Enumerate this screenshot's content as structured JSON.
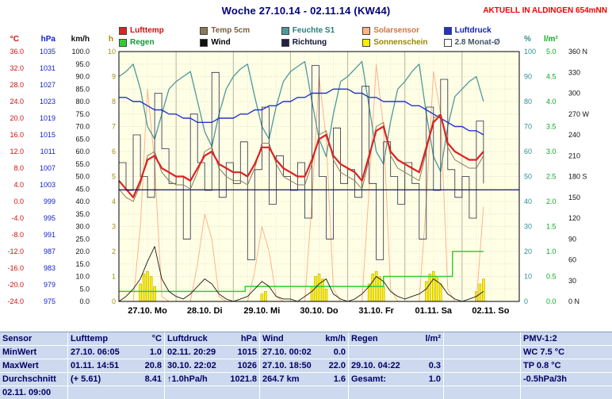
{
  "header": {
    "title": "Woche 27.10.14 - 02.11.14 (KW44)",
    "banner": "AKTUELL IN ALDINGEN 654mNN"
  },
  "colors": {
    "plot_bg": "#ffffe6",
    "page_bg": "#ffffff",
    "table_bg": "#ccd9ee",
    "banner_red": "#ee0000",
    "title_navy": "#000080"
  },
  "legend": {
    "items": [
      {
        "label": "Lufttemp",
        "swatch": "#dd2222",
        "text": "#cc1111"
      },
      {
        "label": "Temp 5cm",
        "swatch": "#8a7a5a",
        "text": "#7a6040"
      },
      {
        "label": "Feuchte S1",
        "swatch": "#4d9999",
        "text": "#2a7a7a"
      },
      {
        "label": "Solarsensor",
        "swatch": "#ffb388",
        "text": "#cc7744"
      },
      {
        "label": "Luftdruck",
        "swatch": "#2233cc",
        "text": "#1122bb"
      },
      {
        "label": "Regen",
        "swatch": "#33cc33",
        "text": "#119933"
      },
      {
        "label": "Wind",
        "swatch": "#111111",
        "text": "#000000"
      },
      {
        "label": "Richtung",
        "swatch": "#222244",
        "text": "#111133"
      },
      {
        "label": "Sonnenschein",
        "swatch": "#ffee00",
        "text": "#998800"
      },
      {
        "label": "2.8 Monat-Ø",
        "swatch": "#ffffff",
        "text": "#445566"
      }
    ]
  },
  "chart_data": {
    "type": "line",
    "title": "Woche 27.10.14 - 02.11.14 (KW44)",
    "x_range": [
      0,
      168
    ],
    "x_unit": "hours from 27.10.2014 00:00",
    "day_labels": [
      "27.10. Mo",
      "28.10. Di",
      "29.10. Mi",
      "30.10. Do",
      "31.10. Fr",
      "01.11. Sa",
      "02.11. So"
    ],
    "axes": {
      "temp": {
        "unit": "°C",
        "color": "#cc1111",
        "min": -24,
        "max": 36,
        "tick_values": [
          36,
          32,
          28,
          24,
          20,
          16,
          12,
          8,
          4,
          0,
          -4,
          -8,
          -12,
          -16,
          -20,
          -24
        ],
        "tick_labels": [
          "36.0",
          "32.0",
          "28.0",
          "24.0",
          "20.0",
          "16.0",
          "12.0",
          "8.0",
          "4.0",
          "0.0",
          "-4.0",
          "-8.0",
          "-12.0",
          "-16.0",
          "-20.0",
          "-24.0"
        ]
      },
      "hpa": {
        "unit": "hPa",
        "color": "#1122cc",
        "min": 975,
        "max": 1035,
        "tick_values": [
          1035,
          1031,
          1027,
          1023,
          1019,
          1015,
          1011,
          1007,
          1003,
          999,
          995,
          991,
          987,
          983,
          979,
          975
        ],
        "tick_labels": [
          "1035",
          "1031",
          "1027",
          "1023",
          "1019",
          "1015",
          "1011",
          "1007",
          "1003",
          "999",
          "995",
          "991",
          "987",
          "983",
          "979",
          "975"
        ]
      },
      "kmh": {
        "unit": "km/h",
        "color": "#111111",
        "min": 0,
        "max": 100,
        "tick_values": [
          100,
          95,
          90,
          85,
          80,
          75,
          70,
          65,
          60,
          55,
          50,
          45,
          40,
          35,
          30,
          25,
          20,
          15,
          10,
          5,
          0
        ],
        "tick_labels": [
          "100.0",
          "95.0",
          "90.0",
          "85.0",
          "80.0",
          "75.0",
          "70.0",
          "65.0",
          "60.0",
          "55.0",
          "50.0",
          "45.0",
          "40.0",
          "35.0",
          "30.0",
          "25.0",
          "20.0",
          "15.0",
          "10.0",
          "5.0",
          "0.0"
        ]
      },
      "h": {
        "unit": "h",
        "color": "#a39000",
        "min": 0,
        "max": 10,
        "tick_values": [
          10,
          9,
          8,
          7,
          6,
          5,
          4,
          3,
          2,
          1,
          0
        ],
        "tick_labels": [
          "10",
          "9",
          "8",
          "7",
          "6",
          "5",
          "4",
          "3",
          "2",
          "1",
          "0"
        ]
      },
      "pct": {
        "unit": "%",
        "color": "#2e8f8f",
        "min": 0,
        "max": 100,
        "tick_values": [
          100,
          90,
          80,
          70,
          60,
          50,
          40,
          30,
          20,
          10,
          0
        ],
        "tick_labels": [
          "100",
          "90",
          "80",
          "70",
          "60",
          "50",
          "40",
          "30",
          "20",
          "10",
          "0"
        ]
      },
      "lm2": {
        "unit": "l/m²",
        "color": "#11aa22",
        "min": 0,
        "max": 5,
        "tick_values": [
          5,
          4.5,
          4,
          3.5,
          3,
          2.5,
          2,
          1.5,
          1,
          0.5,
          0
        ],
        "tick_labels": [
          "5.0",
          "4.5",
          "4.0",
          "3.5",
          "3.0",
          "2.5",
          "2.0",
          "1.5",
          "1.0",
          "0.5",
          "0.0"
        ]
      },
      "dir": {
        "unit": "",
        "color": "#111111",
        "min": 0,
        "max": 360,
        "tick_values": [
          360,
          330,
          300,
          270,
          240,
          210,
          180,
          150,
          120,
          90,
          60,
          30,
          0
        ],
        "tick_labels": [
          "360 N",
          "330",
          "300",
          "270 W",
          "240",
          "210",
          "180 S",
          "150",
          "120",
          "90",
          "60",
          "30",
          "0 N"
        ]
      }
    },
    "x_hours": [
      0,
      3,
      6,
      9,
      12,
      15,
      18,
      21,
      24,
      27,
      30,
      33,
      36,
      39,
      42,
      45,
      48,
      51,
      54,
      57,
      60,
      63,
      66,
      69,
      72,
      75,
      78,
      81,
      84,
      87,
      90,
      93,
      96,
      99,
      102,
      105,
      108,
      111,
      114,
      117,
      120,
      123,
      126,
      129,
      132,
      135,
      138,
      141,
      144,
      147,
      150,
      153
    ],
    "series": [
      {
        "name": "Sonnenschein",
        "kind": "bars",
        "axis": "h",
        "color": "#ffee00",
        "stroke": "#aa9900",
        "points": [
          [
            9,
            0.7
          ],
          [
            10.5,
            1.1
          ],
          [
            12,
            1.2
          ],
          [
            13.5,
            1.0
          ],
          [
            15,
            0.6
          ],
          [
            60,
            0.3
          ],
          [
            61.5,
            0.4
          ],
          [
            81,
            0.6
          ],
          [
            82.5,
            1.0
          ],
          [
            84,
            1.1
          ],
          [
            85.5,
            0.9
          ],
          [
            87,
            0.5
          ],
          [
            105,
            0.7
          ],
          [
            106.5,
            1.1
          ],
          [
            108,
            1.2
          ],
          [
            109.5,
            1.0
          ],
          [
            111,
            0.6
          ],
          [
            129,
            0.8
          ],
          [
            130.5,
            1.1
          ],
          [
            132,
            1.2
          ],
          [
            133.5,
            1.0
          ],
          [
            135,
            0.7
          ],
          [
            150,
            0.4
          ],
          [
            151.5,
            0.7
          ],
          [
            153,
            0.9
          ]
        ]
      },
      {
        "name": "Solarsensor",
        "kind": "line",
        "axis": "pct",
        "color": "#ffb388",
        "width": 1,
        "y": [
          0,
          0,
          0,
          30,
          85,
          55,
          2,
          0,
          0,
          0,
          0,
          15,
          35,
          25,
          2,
          0,
          0,
          0,
          0,
          12,
          30,
          20,
          2,
          0,
          0,
          0,
          0,
          40,
          90,
          65,
          5,
          0,
          0,
          0,
          0,
          45,
          95,
          70,
          5,
          0,
          0,
          0,
          0,
          40,
          92,
          75,
          5,
          0,
          0,
          0,
          0,
          38
        ]
      },
      {
        "name": "Regen",
        "kind": "step",
        "axis": "lm2",
        "color": "#33cc33",
        "width": 1.5,
        "points": [
          [
            0,
            0.2
          ],
          [
            52,
            0.2
          ],
          [
            53,
            0.3
          ],
          [
            110,
            0.3
          ],
          [
            111,
            0.5
          ],
          [
            139,
            0.5
          ],
          [
            140,
            1.0
          ],
          [
            153,
            1.0
          ]
        ]
      },
      {
        "name": "Feuchte S1",
        "kind": "line",
        "axis": "pct",
        "color": "#4d9999",
        "width": 1.3,
        "y": [
          90,
          92,
          95,
          85,
          70,
          65,
          75,
          85,
          88,
          90,
          92,
          80,
          68,
          62,
          75,
          85,
          90,
          93,
          95,
          82,
          70,
          65,
          78,
          88,
          92,
          94,
          96,
          80,
          65,
          58,
          75,
          88,
          90,
          93,
          96,
          78,
          60,
          55,
          72,
          85,
          88,
          92,
          95,
          75,
          58,
          52,
          70,
          82,
          85,
          88,
          90,
          80
        ]
      },
      {
        "name": "Richtung",
        "kind": "step",
        "axis": "dir",
        "color": "#2a2a4a",
        "width": 0.8,
        "y": [
          200,
          160,
          240,
          180,
          150,
          300,
          220,
          170,
          180,
          90,
          270,
          200,
          160,
          330,
          150,
          200,
          170,
          230,
          60,
          190,
          280,
          140,
          210,
          180,
          160,
          200,
          120,
          340,
          180,
          90,
          250,
          170,
          190,
          150,
          310,
          170,
          60,
          230,
          180,
          140,
          200,
          170,
          90,
          280,
          160,
          320,
          190,
          150,
          180,
          120,
          260,
          170
        ]
      },
      {
        "name": "Wind",
        "kind": "line",
        "axis": "kmh",
        "color": "#1a1a1a",
        "width": 0.9,
        "y": [
          0,
          2,
          5,
          9,
          16,
          22,
          9,
          4,
          2,
          1,
          3,
          6,
          9,
          7,
          3,
          1,
          0,
          1,
          2,
          5,
          8,
          6,
          2,
          1,
          1,
          0,
          2,
          4,
          7,
          9,
          3,
          1,
          0,
          1,
          3,
          6,
          10,
          8,
          4,
          2,
          1,
          2,
          3,
          5,
          9,
          7,
          3,
          1,
          0,
          1,
          2,
          4
        ]
      },
      {
        "name": "Luftdruck",
        "kind": "line",
        "axis": "hpa",
        "color": "#2233cc",
        "width": 1.4,
        "y": [
          1024,
          1024,
          1023,
          1023,
          1022,
          1021,
          1021,
          1020,
          1020,
          1019,
          1019,
          1018,
          1018,
          1018,
          1019,
          1019,
          1019,
          1020,
          1020,
          1021,
          1021,
          1022,
          1022,
          1023,
          1023,
          1024,
          1024,
          1025,
          1025,
          1025,
          1026,
          1026,
          1026,
          1025,
          1025,
          1024,
          1024,
          1023,
          1023,
          1023,
          1023,
          1022,
          1022,
          1021,
          1020,
          1019,
          1018,
          1017,
          1017,
          1016,
          1016,
          1015
        ]
      },
      {
        "name": "Temp 5cm",
        "kind": "line",
        "axis": "temp",
        "color": "#8a7a5a",
        "width": 1,
        "y": [
          3,
          1,
          0,
          4,
          11,
          12,
          7,
          5,
          4,
          4,
          3,
          7,
          12,
          13,
          8,
          6,
          5,
          5,
          4,
          8,
          14,
          14,
          9,
          6,
          5,
          4,
          4,
          9,
          16,
          17,
          10,
          7,
          6,
          5,
          3,
          10,
          18,
          19,
          11,
          8,
          7,
          6,
          5,
          12,
          20,
          21,
          13,
          10,
          9,
          8,
          8,
          11
        ]
      },
      {
        "name": "Lufttemp",
        "kind": "line",
        "axis": "temp",
        "color": "#dd2222",
        "width": 2.2,
        "y": [
          5,
          3,
          1,
          5,
          10,
          11,
          8,
          7,
          6,
          6,
          5,
          8,
          11,
          12,
          9,
          8,
          7,
          7,
          6,
          9,
          13,
          13,
          10,
          8,
          7,
          6,
          6,
          10,
          15,
          16,
          11,
          9,
          8,
          7,
          5,
          11,
          17,
          18,
          12,
          10,
          9,
          8,
          7,
          13,
          19,
          20.8,
          14,
          12,
          11,
          10,
          10,
          12
        ]
      },
      {
        "name": "2.8 Monat-Ø",
        "kind": "hline",
        "axis": "temp",
        "color": "#000066",
        "width": 1.2,
        "value": 2.8
      }
    ]
  },
  "stats": {
    "header": {
      "sensor": "Sensor",
      "cols": [
        [
          "Lufttemp",
          "°C"
        ],
        [
          "Luftdruck",
          "hPa"
        ],
        [
          "Wind",
          "km/h"
        ],
        [
          "Regen",
          "l/m²"
        ]
      ],
      "pmv": "PMV-1:2"
    },
    "rows": [
      {
        "label": "MinWert",
        "cells": [
          [
            "27.10. 06:05",
            "1.0"
          ],
          [
            "02.11. 20:29",
            "1015"
          ],
          [
            "27.10. 00:02",
            "0.0"
          ],
          [
            "",
            ""
          ]
        ],
        "pmv": "WC 7.5 °C"
      },
      {
        "label": "MaxWert",
        "cells": [
          [
            "01.11. 14:51",
            "20.8"
          ],
          [
            "30.10. 22:02",
            "1026"
          ],
          [
            "27.10. 18:50",
            "22.0"
          ],
          [
            "29.10. 04:22",
            "0.3"
          ]
        ],
        "pmv": "TP 0.8 °C"
      },
      {
        "label": "Durchschnitt",
        "cells": [
          [
            "(+ 5.61)",
            "8.41"
          ],
          [
            "↑1.0hPa/h",
            "1021.8"
          ],
          [
            "264.7 km",
            "1.6"
          ],
          [
            "Gesamt:",
            "1.0"
          ]
        ],
        "pmv": "-0.5hPa/3h"
      },
      {
        "label": "02.11. 09:00",
        "cells": [
          [
            "",
            ""
          ],
          [
            "",
            ""
          ],
          [
            "",
            ""
          ],
          [
            "",
            ""
          ]
        ],
        "pmv": ""
      }
    ]
  }
}
